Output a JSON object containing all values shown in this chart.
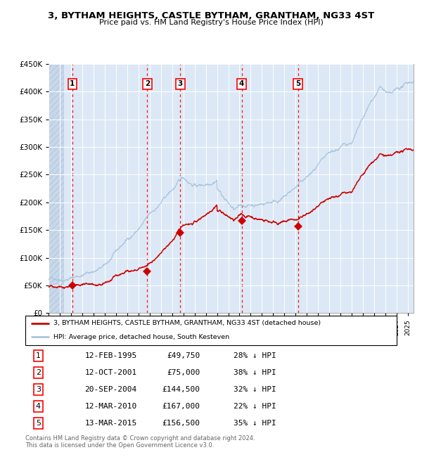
{
  "title": "3, BYTHAM HEIGHTS, CASTLE BYTHAM, GRANTHAM, NG33 4ST",
  "subtitle": "Price paid vs. HM Land Registry's House Price Index (HPI)",
  "ylim": [
    0,
    450000
  ],
  "yticks": [
    0,
    50000,
    100000,
    150000,
    200000,
    250000,
    300000,
    350000,
    400000,
    450000
  ],
  "ytick_labels": [
    "£0",
    "£50K",
    "£100K",
    "£150K",
    "£200K",
    "£250K",
    "£300K",
    "£350K",
    "£400K",
    "£450K"
  ],
  "hpi_color": "#a8c4e0",
  "price_color": "#cc0000",
  "sale_marker_color": "#cc0000",
  "bg_color": "#dce8f5",
  "grid_color": "#ffffff",
  "sales": [
    {
      "label": "1",
      "date_num": 1995.12,
      "price": 49750
    },
    {
      "label": "2",
      "date_num": 2001.79,
      "price": 75000
    },
    {
      "label": "3",
      "date_num": 2004.73,
      "price": 144500
    },
    {
      "label": "4",
      "date_num": 2010.19,
      "price": 167000
    },
    {
      "label": "5",
      "date_num": 2015.2,
      "price": 156500
    }
  ],
  "legend_house_label": "3, BYTHAM HEIGHTS, CASTLE BYTHAM, GRANTHAM, NG33 4ST (detached house)",
  "legend_hpi_label": "HPI: Average price, detached house, South Kesteven",
  "table_rows": [
    [
      "1",
      "12-FEB-1995",
      "£49,750",
      "28% ↓ HPI"
    ],
    [
      "2",
      "12-OCT-2001",
      "£75,000",
      "38% ↓ HPI"
    ],
    [
      "3",
      "20-SEP-2004",
      "£144,500",
      "32% ↓ HPI"
    ],
    [
      "4",
      "12-MAR-2010",
      "£167,000",
      "22% ↓ HPI"
    ],
    [
      "5",
      "13-MAR-2015",
      "£156,500",
      "35% ↓ HPI"
    ]
  ],
  "footer": "Contains HM Land Registry data © Crown copyright and database right 2024.\nThis data is licensed under the Open Government Licence v3.0.",
  "xmin": 1993.0,
  "xmax": 2025.5,
  "hatch_xend": 1994.3
}
